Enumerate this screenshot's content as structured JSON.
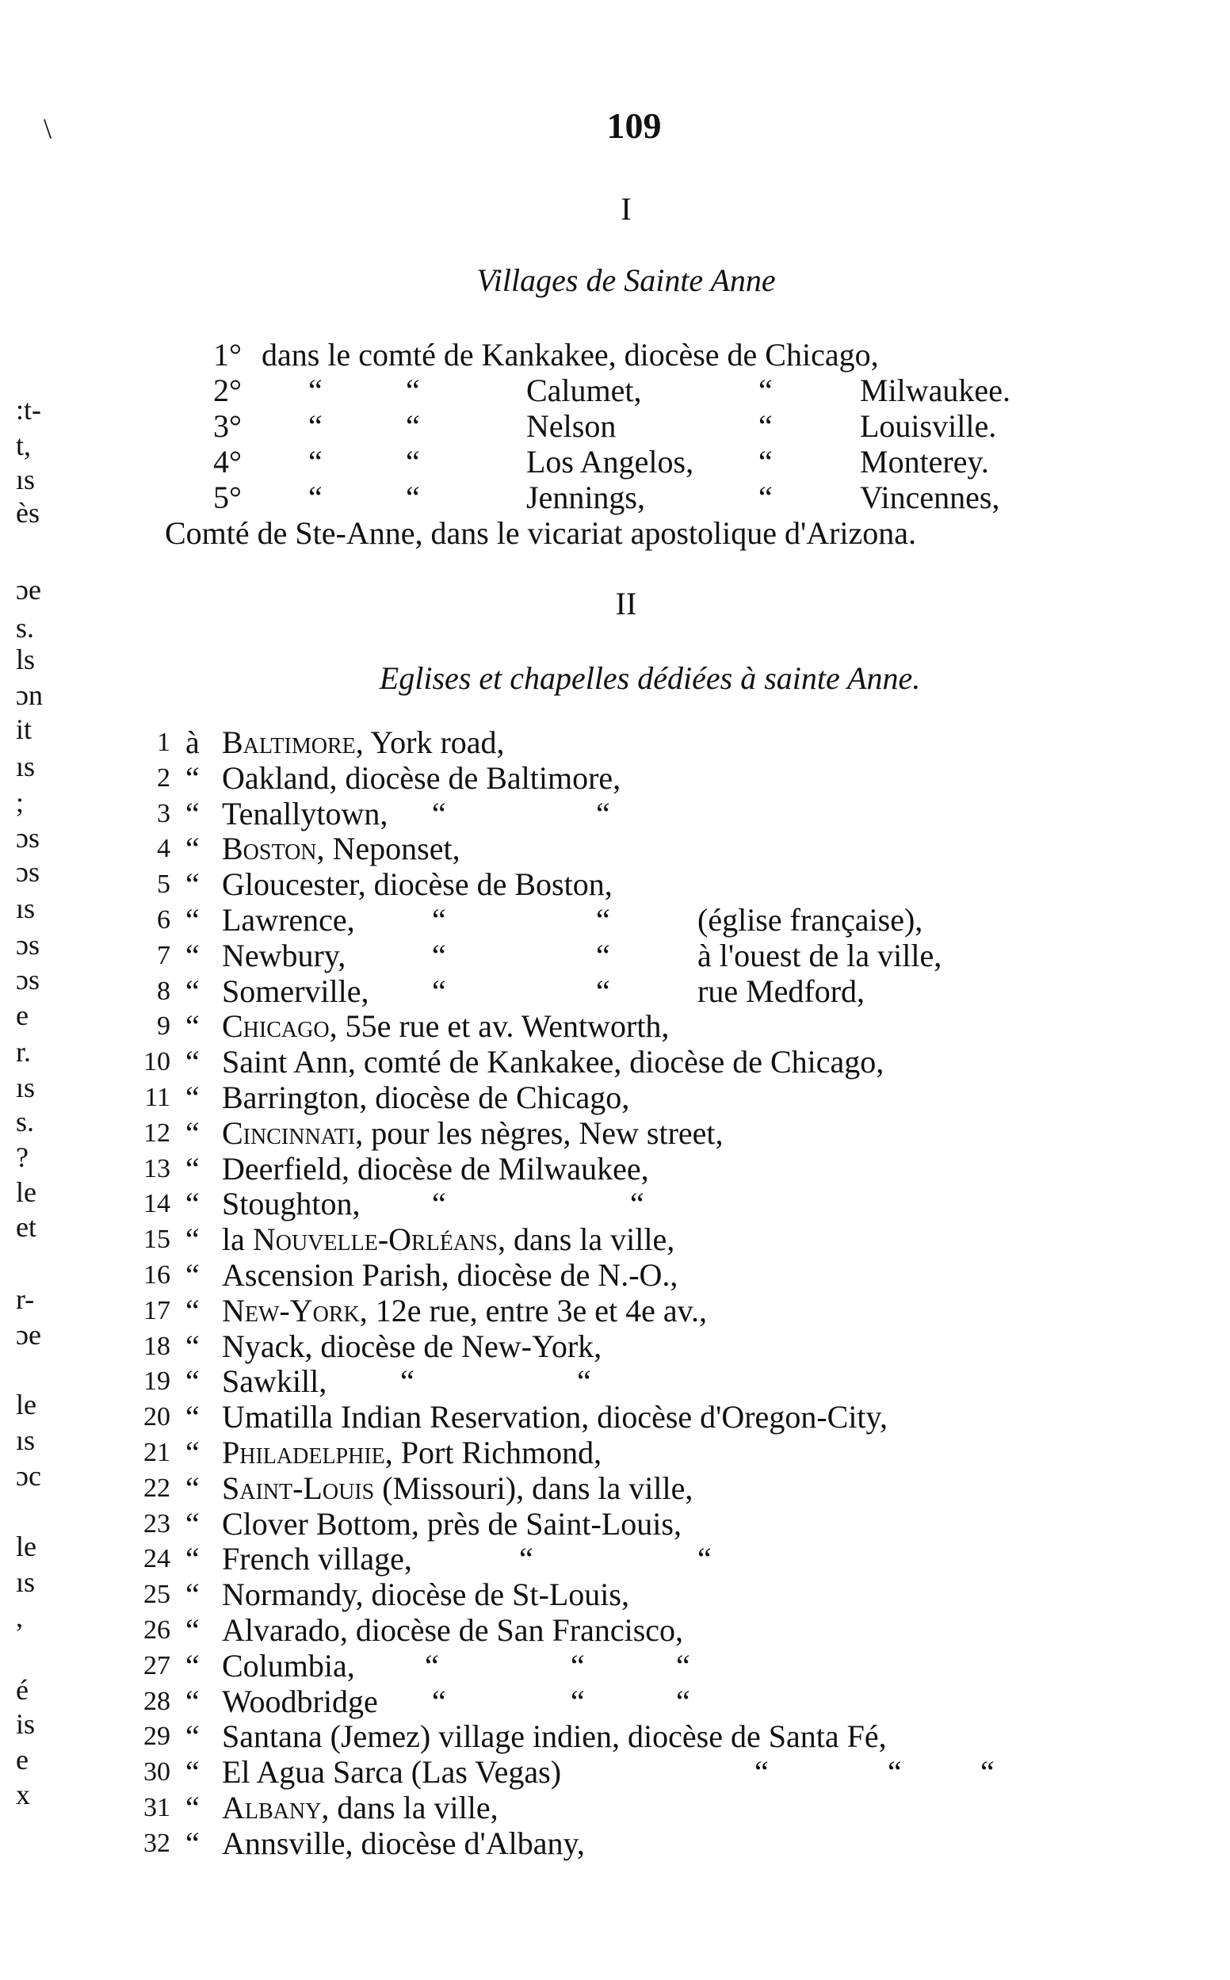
{
  "page_number": "109",
  "section1": {
    "numeral": "I",
    "title": "Villages de Sainte Anne",
    "rows": [
      {
        "n": "1°",
        "cols": [
          "dans le comté de Kankakee, diocèse de Chicago,"
        ]
      },
      {
        "n": "2°",
        "cols": [
          "“",
          "“",
          "Calumet,",
          "“",
          "Milwaukee."
        ]
      },
      {
        "n": "3°",
        "cols": [
          "“",
          "“",
          "Nelson",
          "“",
          "Louisville."
        ]
      },
      {
        "n": "4°",
        "cols": [
          "“",
          "“",
          "Los Angelos,",
          "“",
          "Monterey."
        ]
      },
      {
        "n": "5°",
        "cols": [
          "“",
          "“",
          "Jennings,",
          "“",
          "Vincennes,"
        ]
      }
    ],
    "closing": "Comté de Ste-Anne, dans le vicariat apostolique d'Arizona."
  },
  "section2": {
    "numeral": "II",
    "title": "Eglises et chapelles dédiées à sainte Anne.",
    "items": [
      {
        "n": "1",
        "lead": "à",
        "caps": "Baltimore",
        "text": ", York road,"
      },
      {
        "n": "2",
        "lead": "“",
        "text": "Oakland, diocèse de Baltimore,"
      },
      {
        "n": "3",
        "lead": "“",
        "text": "Tenallytown,",
        "extra": [
          "“",
          "“"
        ]
      },
      {
        "n": "4",
        "lead": "“",
        "caps": "Boston",
        "text": ", Neponset,"
      },
      {
        "n": "5",
        "lead": "“",
        "text": "Gloucester, diocèse de Boston,"
      },
      {
        "n": "6",
        "lead": "“",
        "text": "Lawrence,",
        "extra": [
          "“",
          "“",
          "(église française),"
        ]
      },
      {
        "n": "7",
        "lead": "“",
        "text": "Newbury,",
        "extra": [
          "“",
          "“",
          "à l'ouest de la ville,"
        ]
      },
      {
        "n": "8",
        "lead": "“",
        "text": "Somerville,",
        "extra": [
          "“",
          "“",
          "rue Medford,"
        ]
      },
      {
        "n": "9",
        "lead": "“",
        "caps": "Chicago",
        "text": ", 55e rue et av. Wentworth,"
      },
      {
        "n": "10",
        "lead": "“",
        "text": "Saint Ann, comté de Kankakee, diocèse de Chicago,"
      },
      {
        "n": "11",
        "lead": "“",
        "text": "Barrington, diocèse de Chicago,"
      },
      {
        "n": "12",
        "lead": "“",
        "caps": "Cincinnati",
        "text": ", pour les nègres, New street,"
      },
      {
        "n": "13",
        "lead": "“",
        "text": "Deerfield, diocèse de Milwaukee,"
      },
      {
        "n": "14",
        "lead": "“",
        "text": "Stoughton,",
        "extra": [
          "“",
          "“"
        ]
      },
      {
        "n": "15",
        "lead": "“",
        "pre": "la ",
        "caps": "Nouvelle-Orléans",
        "text": ", dans la ville,"
      },
      {
        "n": "16",
        "lead": "“",
        "text": "Ascension Parish, diocèse de N.-O.,"
      },
      {
        "n": "17",
        "lead": "“",
        "caps": "New-York",
        "text": ", 12e rue, entre 3e et 4e av.,"
      },
      {
        "n": "18",
        "lead": "“",
        "text": "Nyack, diocèse de New-York,"
      },
      {
        "n": "19",
        "lead": "“",
        "text": "Sawkill,",
        "extra": [
          "“",
          "“"
        ]
      },
      {
        "n": "20",
        "lead": "“",
        "text": "Umatilla Indian Reservation, diocèse d'Oregon-City,"
      },
      {
        "n": "21",
        "lead": "“",
        "caps": "Philadelphie",
        "text": ", Port Richmond,"
      },
      {
        "n": "22",
        "lead": "“",
        "caps": "Saint-Louis",
        "text": " (Missouri), dans la ville,"
      },
      {
        "n": "23",
        "lead": "“",
        "text": "Clover Bottom, près de Saint-Louis,"
      },
      {
        "n": "24",
        "lead": "“",
        "text": "French village,",
        "extra": [
          "“",
          "“"
        ]
      },
      {
        "n": "25",
        "lead": "“",
        "text": "Normandy, diocèse de St-Louis,"
      },
      {
        "n": "26",
        "lead": "“",
        "text": "Alvarado, diocèse de San Francisco,"
      },
      {
        "n": "27",
        "lead": "“",
        "text": "Columbia,",
        "extra": [
          "“",
          "“",
          "“"
        ]
      },
      {
        "n": "28",
        "lead": "“",
        "text": "Woodbridge",
        "extra": [
          "“",
          "“",
          "“"
        ]
      },
      {
        "n": "29",
        "lead": "“",
        "text": "Santana (Jemez) village indien, diocèse de Santa Fé,"
      },
      {
        "n": "30",
        "lead": "“",
        "text": "El Agua Sarca (Las Vegas)",
        "extra": [
          "“",
          "“",
          "“"
        ]
      },
      {
        "n": "31",
        "lead": "“",
        "caps": "Albany",
        "text": ", dans la ville,"
      },
      {
        "n": "32",
        "lead": "“",
        "text": "Annsville, diocèse d'Albany,"
      }
    ]
  },
  "facing_page_fragments": [
    "\\",
    ":t-",
    "t,",
    "ıs",
    "ès",
    "ɔe",
    "s.",
    "ls",
    "ɔn",
    "it",
    "ıs",
    ";",
    "ɔs",
    "ɔs",
    "ıs",
    "ɔs",
    "ɔs",
    "e",
    "r.",
    "ıs",
    "s.",
    "?",
    "le",
    "et",
    "r-",
    "ɔe",
    "le",
    "ıs",
    "ɔc",
    "le",
    "ıs",
    ",",
    "é",
    "is",
    "e",
    "x"
  ]
}
